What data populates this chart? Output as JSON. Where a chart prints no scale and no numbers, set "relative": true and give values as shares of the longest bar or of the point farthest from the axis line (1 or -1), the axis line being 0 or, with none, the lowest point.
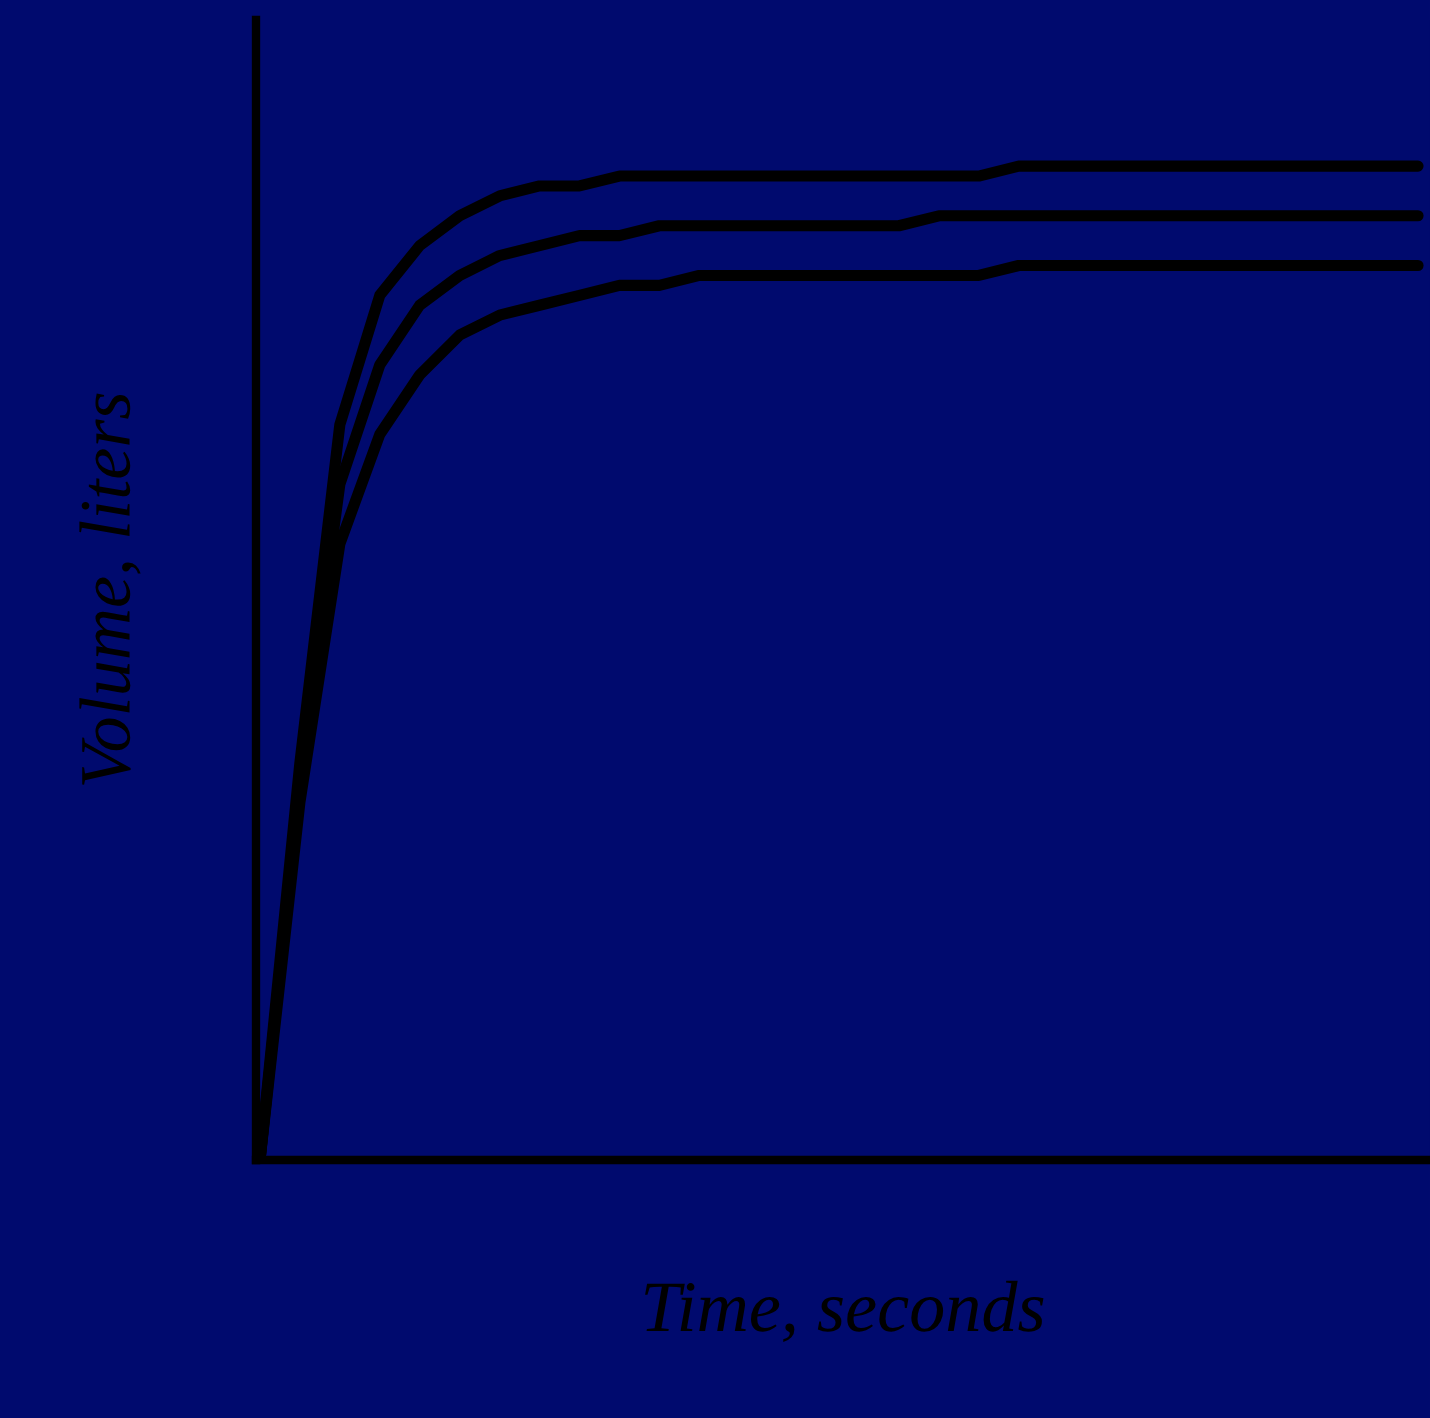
{
  "chart_data": {
    "type": "line",
    "relative": true,
    "xlabel": "Time, seconds",
    "ylabel": "Volume, liters",
    "grid": false,
    "marker": "none",
    "line_style": "solid",
    "categories": [
      null,
      null,
      null,
      null,
      null,
      null,
      null,
      null,
      null,
      null,
      null,
      null,
      null,
      null,
      null,
      null,
      null,
      null,
      null,
      null,
      null,
      null,
      null,
      null,
      null,
      null,
      null,
      null,
      null,
      null
    ],
    "series": [
      {
        "color": "#000000",
        "values": [
          0,
          0.4,
          0.74,
          0.87,
          0.92,
          0.95,
          0.97,
          0.98,
          0.98,
          0.99,
          0.99,
          0.99,
          0.99,
          0.99,
          0.99,
          0.99,
          0.99,
          0.99,
          0.99,
          1,
          1,
          1,
          1,
          1,
          1,
          1,
          1,
          1,
          1,
          1
        ]
      },
      {
        "color": "#000000",
        "values": [
          0,
          0.38,
          0.68,
          0.8,
          0.86,
          0.89,
          0.91,
          0.92,
          0.93,
          0.93,
          0.94,
          0.94,
          0.94,
          0.94,
          0.94,
          0.94,
          0.94,
          0.95,
          0.95,
          0.95,
          0.95,
          0.95,
          0.95,
          0.95,
          0.95,
          0.95,
          0.95,
          0.95,
          0.95,
          0.95
        ]
      },
      {
        "color": "#000000",
        "values": [
          0,
          0.36,
          0.62,
          0.73,
          0.79,
          0.83,
          0.85,
          0.86,
          0.87,
          0.88,
          0.88,
          0.89,
          0.89,
          0.89,
          0.89,
          0.89,
          0.89,
          0.89,
          0.89,
          0.9,
          0.9,
          0.9,
          0.9,
          0.9,
          0.9,
          0.9,
          0.9,
          0.9,
          0.9,
          0.9
        ]
      }
    ]
  }
}
